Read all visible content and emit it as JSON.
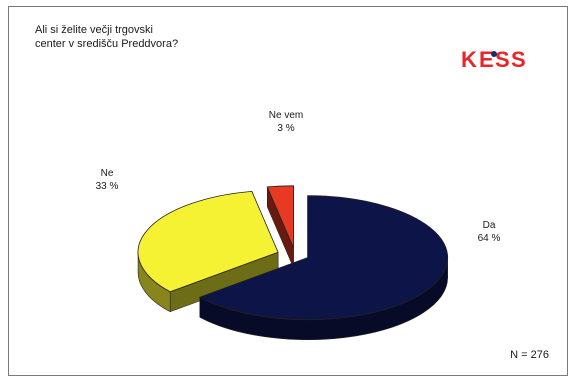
{
  "title_line1": "Ali si želite večji trgovski",
  "title_line2": "center v središču Preddvora?",
  "logo_text": "KESS",
  "n_label": "N = 276",
  "chart_data": {
    "type": "pie",
    "categories": [
      "Da",
      "Ne",
      "Ne vem"
    ],
    "values": [
      64,
      33,
      3
    ],
    "value_labels": [
      "64 %",
      "33 %",
      "3 %"
    ],
    "colors": [
      "#0d1447",
      "#f5f233",
      "#e63a25"
    ],
    "exploded": true,
    "three_d": true
  }
}
